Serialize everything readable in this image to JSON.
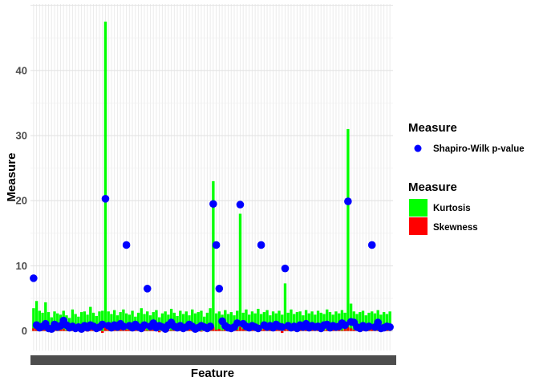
{
  "chart_data": {
    "type": "bar",
    "xlabel": "Feature",
    "ylabel": "Measure",
    "ylim": [
      -3,
      50.2
    ],
    "yticks": [
      0,
      10,
      20,
      30,
      40
    ],
    "grid": true,
    "legend_placement": "right",
    "x_tick_labels_legible": false,
    "colors": {
      "Kurtosis": "#00ff00",
      "Skewness": "#ff0000",
      "Shapiro-Wilk p-value": "#0000ff"
    },
    "legends": [
      {
        "title": "Measure",
        "type": "point",
        "entries": [
          "Shapiro-Wilk p-value"
        ]
      },
      {
        "title": "Measure",
        "type": "fill",
        "entries": [
          "Kurtosis",
          "Skewness"
        ]
      }
    ],
    "series": [
      {
        "name": "Kurtosis",
        "geom": "bar",
        "values": [
          3.5,
          4.6,
          3.1,
          2.8,
          4.4,
          2.9,
          2.1,
          3.0,
          2.7,
          2.5,
          3.1,
          2.4,
          2.0,
          3.3,
          2.6,
          2.2,
          2.9,
          3.0,
          2.5,
          3.7,
          2.8,
          2.3,
          3.0,
          3.1,
          47.5,
          3.0,
          2.6,
          3.2,
          2.4,
          2.9,
          3.3,
          2.7,
          2.5,
          3.1,
          2.2,
          2.8,
          3.5,
          2.6,
          3.0,
          2.4,
          2.9,
          3.2,
          2.1,
          2.7,
          3.0,
          2.5,
          3.4,
          2.8,
          2.3,
          3.1,
          2.6,
          3.0,
          2.4,
          3.3,
          2.7,
          2.9,
          3.1,
          2.2,
          2.8,
          3.5,
          23.0,
          2.7,
          3.0,
          2.5,
          3.2,
          2.6,
          2.9,
          2.4,
          3.1,
          18.0,
          2.8,
          3.3,
          2.5,
          3.0,
          2.7,
          3.4,
          2.6,
          2.9,
          3.2,
          2.4,
          3.0,
          2.7,
          3.1,
          2.5,
          7.3,
          2.8,
          3.3,
          2.6,
          2.9,
          3.0,
          2.4,
          3.2,
          2.7,
          3.0,
          2.5,
          3.1,
          2.8,
          2.6,
          3.3,
          2.9,
          2.5,
          3.0,
          2.7,
          3.2,
          2.8,
          31.0,
          4.2,
          3.0,
          2.6,
          2.9,
          3.1,
          2.4,
          2.8,
          3.0,
          2.7,
          3.2,
          2.5,
          2.9,
          2.6,
          3.0
        ]
      },
      {
        "name": "Skewness",
        "geom": "bar",
        "values": [
          0.4,
          0.6,
          0.3,
          0.2,
          0.5,
          0.1,
          -0.2,
          0.3,
          0.4,
          0.2,
          0.3,
          0.1,
          0.2,
          0.5,
          0.3,
          0.2,
          0.4,
          0.6,
          -0.1,
          0.5,
          0.3,
          0.2,
          0.4,
          -0.3,
          0.6,
          0.3,
          0.2,
          0.5,
          0.1,
          0.4,
          0.3,
          0.2,
          0.4,
          0.1,
          0.3,
          0.5,
          0.2,
          0.4,
          0.1,
          0.3,
          0.2,
          0.4,
          -0.2,
          0.3,
          0.5,
          0.2,
          0.1,
          0.4,
          0.3,
          0.2,
          0.5,
          0.1,
          0.3,
          0.4,
          0.2,
          0.3,
          -0.1,
          0.2,
          0.4,
          0.3,
          0.6,
          0.2,
          0.3,
          0.1,
          0.4,
          0.2,
          0.3,
          0.5,
          0.2,
          0.6,
          0.3,
          0.1,
          0.4,
          0.2,
          0.3,
          0.5,
          0.2,
          0.4,
          0.1,
          0.3,
          0.2,
          0.4,
          0.3,
          -0.3,
          0.5,
          0.2,
          0.3,
          0.1,
          0.4,
          0.2,
          0.3,
          0.5,
          0.1,
          0.3,
          0.2,
          0.4,
          0.3,
          0.1,
          0.2,
          0.4,
          0.3,
          0.2,
          0.5,
          0.1,
          0.3,
          0.6,
          0.4,
          0.2,
          0.3,
          0.1,
          0.4,
          0.2,
          0.3,
          0.5,
          0.2,
          0.1,
          0.4,
          0.3,
          0.2,
          0.3
        ]
      },
      {
        "name": "Shapiro-Wilk p-value",
        "geom": "point",
        "values": [
          8.1,
          0.9,
          0.5,
          0.7,
          1.1,
          0.4,
          0.3,
          1.0,
          0.6,
          0.8,
          1.6,
          0.9,
          0.5,
          0.7,
          0.4,
          0.6,
          0.3,
          0.8,
          0.5,
          0.9,
          0.7,
          0.4,
          0.6,
          1.0,
          20.3,
          0.8,
          0.5,
          0.9,
          0.6,
          1.1,
          0.7,
          13.2,
          0.8,
          0.5,
          1.0,
          0.6,
          0.4,
          0.9,
          6.5,
          0.7,
          1.2,
          0.5,
          0.8,
          0.6,
          0.3,
          0.9,
          1.3,
          0.7,
          0.5,
          0.8,
          0.4,
          0.6,
          1.0,
          0.7,
          0.3,
          0.5,
          0.8,
          0.6,
          0.4,
          0.7,
          19.5,
          13.2,
          6.5,
          1.5,
          0.8,
          0.5,
          0.4,
          0.6,
          1.2,
          19.4,
          1.1,
          0.7,
          0.5,
          0.8,
          0.6,
          0.4,
          13.2,
          0.9,
          0.6,
          0.8,
          0.5,
          1.0,
          0.7,
          0.6,
          9.6,
          0.8,
          0.5,
          0.7,
          0.4,
          0.9,
          0.6,
          1.1,
          0.5,
          0.8,
          0.6,
          0.7,
          0.4,
          0.9,
          1.0,
          0.5,
          0.8,
          0.6,
          0.7,
          1.2,
          0.9,
          19.9,
          1.4,
          1.3,
          0.6,
          0.4,
          0.8,
          0.5,
          0.7,
          13.2,
          0.6,
          1.3,
          0.4,
          0.5,
          0.7,
          0.6
        ]
      }
    ]
  }
}
